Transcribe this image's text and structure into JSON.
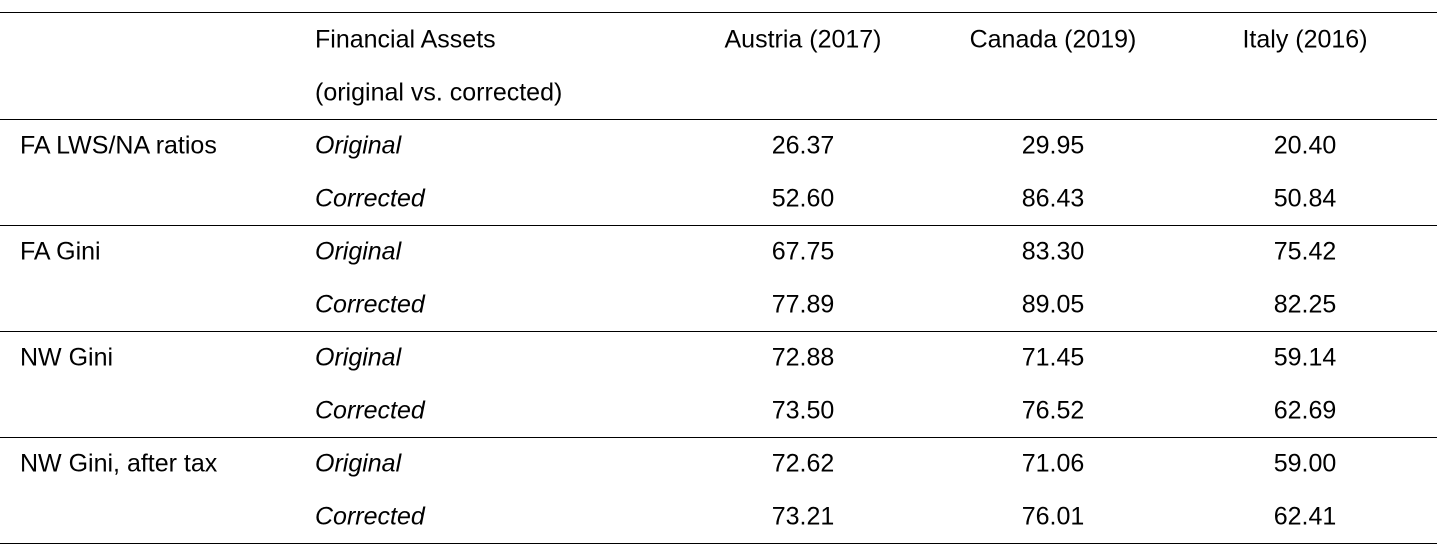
{
  "header": {
    "col_type_line1": "Financial Assets",
    "col_type_line2": "(original vs. corrected)",
    "countries": [
      "Austria (2017)",
      "Canada (2019)",
      "Italy (2016)"
    ]
  },
  "rows": [
    {
      "label": "FA LWS/NA ratios",
      "original_label": "Original",
      "corrected_label": "Corrected",
      "original": [
        "26.37",
        "29.95",
        "20.40"
      ],
      "corrected": [
        "52.60",
        "86.43",
        "50.84"
      ]
    },
    {
      "label": "FA Gini",
      "original_label": "Original",
      "corrected_label": "Corrected",
      "original": [
        "67.75",
        "83.30",
        "75.42"
      ],
      "corrected": [
        "77.89",
        "89.05",
        "82.25"
      ]
    },
    {
      "label": "NW Gini",
      "original_label": "Original",
      "corrected_label": "Corrected",
      "original": [
        "72.88",
        "71.45",
        "59.14"
      ],
      "corrected": [
        "73.50",
        "76.52",
        "62.69"
      ]
    },
    {
      "label": "NW Gini, after tax",
      "original_label": "Original",
      "corrected_label": "Corrected",
      "original": [
        "72.62",
        "71.06",
        "59.00"
      ],
      "corrected": [
        "73.21",
        "76.01",
        "62.41"
      ]
    }
  ]
}
